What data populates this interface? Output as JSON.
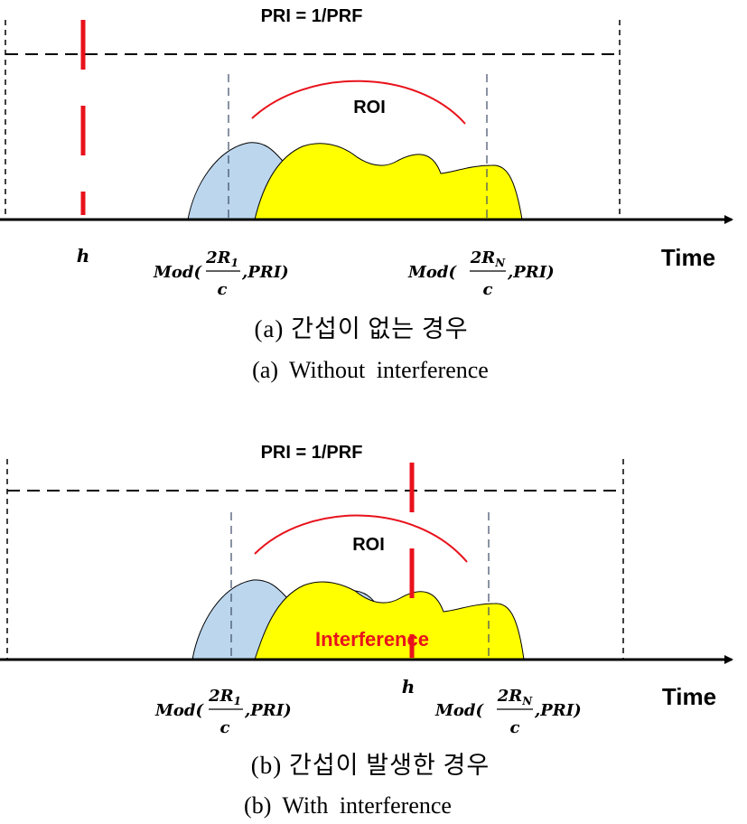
{
  "panels": [
    {
      "id": "a",
      "pri_label": "PRI = 1/PRF",
      "roi_label": "ROI",
      "h_label": "h",
      "time_label": "Time",
      "mod_prefix": "Mod(",
      "mod_suffix": ",PRI)",
      "mod1_numerator": "2R",
      "mod1_subscript": "1",
      "modn_numerator": "2R",
      "modn_subscript": "N",
      "denominator": "c",
      "caption_korean": "(a) 간섭이 없는 경우",
      "caption_english": "(a) Without interference"
    },
    {
      "id": "b",
      "pri_label": "PRI = 1/PRF",
      "roi_label": "ROI",
      "h_label": "h",
      "time_label": "Time",
      "interference_label": "Interference",
      "mod_prefix": "Mod(",
      "mod_suffix": ",PRI)",
      "mod1_numerator": "2R",
      "mod1_subscript": "1",
      "modn_numerator": "2R",
      "modn_subscript": "N",
      "denominator": "c",
      "caption_korean": "(b) 간섭이 발생한 경우",
      "caption_english": "(b) With interference"
    }
  ],
  "colors": {
    "interference_line": "#e8121c",
    "roi_arc": "#e8121c",
    "blue_echo": "#bcd6ee",
    "yellow_echo": "#ffff00",
    "axis": "#000000"
  }
}
